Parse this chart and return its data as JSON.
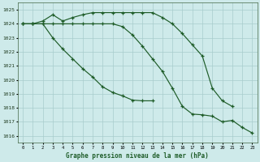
{
  "title": "Graphe pression niveau de la mer (hPa)",
  "ylim": [
    1015.5,
    1025.5
  ],
  "yticks": [
    1016,
    1017,
    1018,
    1019,
    1020,
    1021,
    1022,
    1023,
    1024,
    1025
  ],
  "bg_color": "#ceeaea",
  "grid_color": "#a8cccc",
  "line_color": "#1e5c28",
  "line1_x": [
    0,
    1,
    2,
    3,
    4,
    5,
    6,
    7,
    8,
    9,
    10,
    11,
    12,
    13,
    14,
    15,
    16,
    17,
    18,
    19,
    20,
    21,
    22,
    23
  ],
  "line1_y": [
    1024,
    1024,
    1024,
    1024,
    1024,
    1024,
    1024,
    1024,
    1024,
    1024,
    1023.8,
    1023.2,
    1022.4,
    1021.5,
    1020.6,
    1019.4,
    1018.1,
    1017.55,
    1017.5,
    1017.4,
    1017.0,
    1017.1,
    1016.6,
    1016.2
  ],
  "line2_x": [
    0,
    1,
    2,
    3,
    4,
    5,
    6,
    7,
    8,
    9,
    10,
    11,
    12,
    13,
    14,
    15,
    16,
    17,
    18,
    19,
    20,
    21
  ],
  "line2_y": [
    1024,
    1024,
    1024.2,
    1024.65,
    1024.2,
    1024.45,
    1024.65,
    1024.8,
    1024.8,
    1024.8,
    1024.8,
    1024.8,
    1024.8,
    1024.8,
    1024.45,
    1024.0,
    1023.3,
    1022.5,
    1021.7,
    1019.4,
    1018.5,
    1018.1
  ],
  "line3_x": [
    0,
    1,
    2,
    3,
    4,
    5,
    6,
    7,
    8,
    9,
    10,
    11,
    12,
    13
  ],
  "line3_y": [
    1024,
    1024,
    1024,
    1023.0,
    1022.2,
    1021.5,
    1020.8,
    1020.2,
    1019.5,
    1019.1,
    1018.85,
    1018.55,
    1018.5,
    1018.5
  ]
}
